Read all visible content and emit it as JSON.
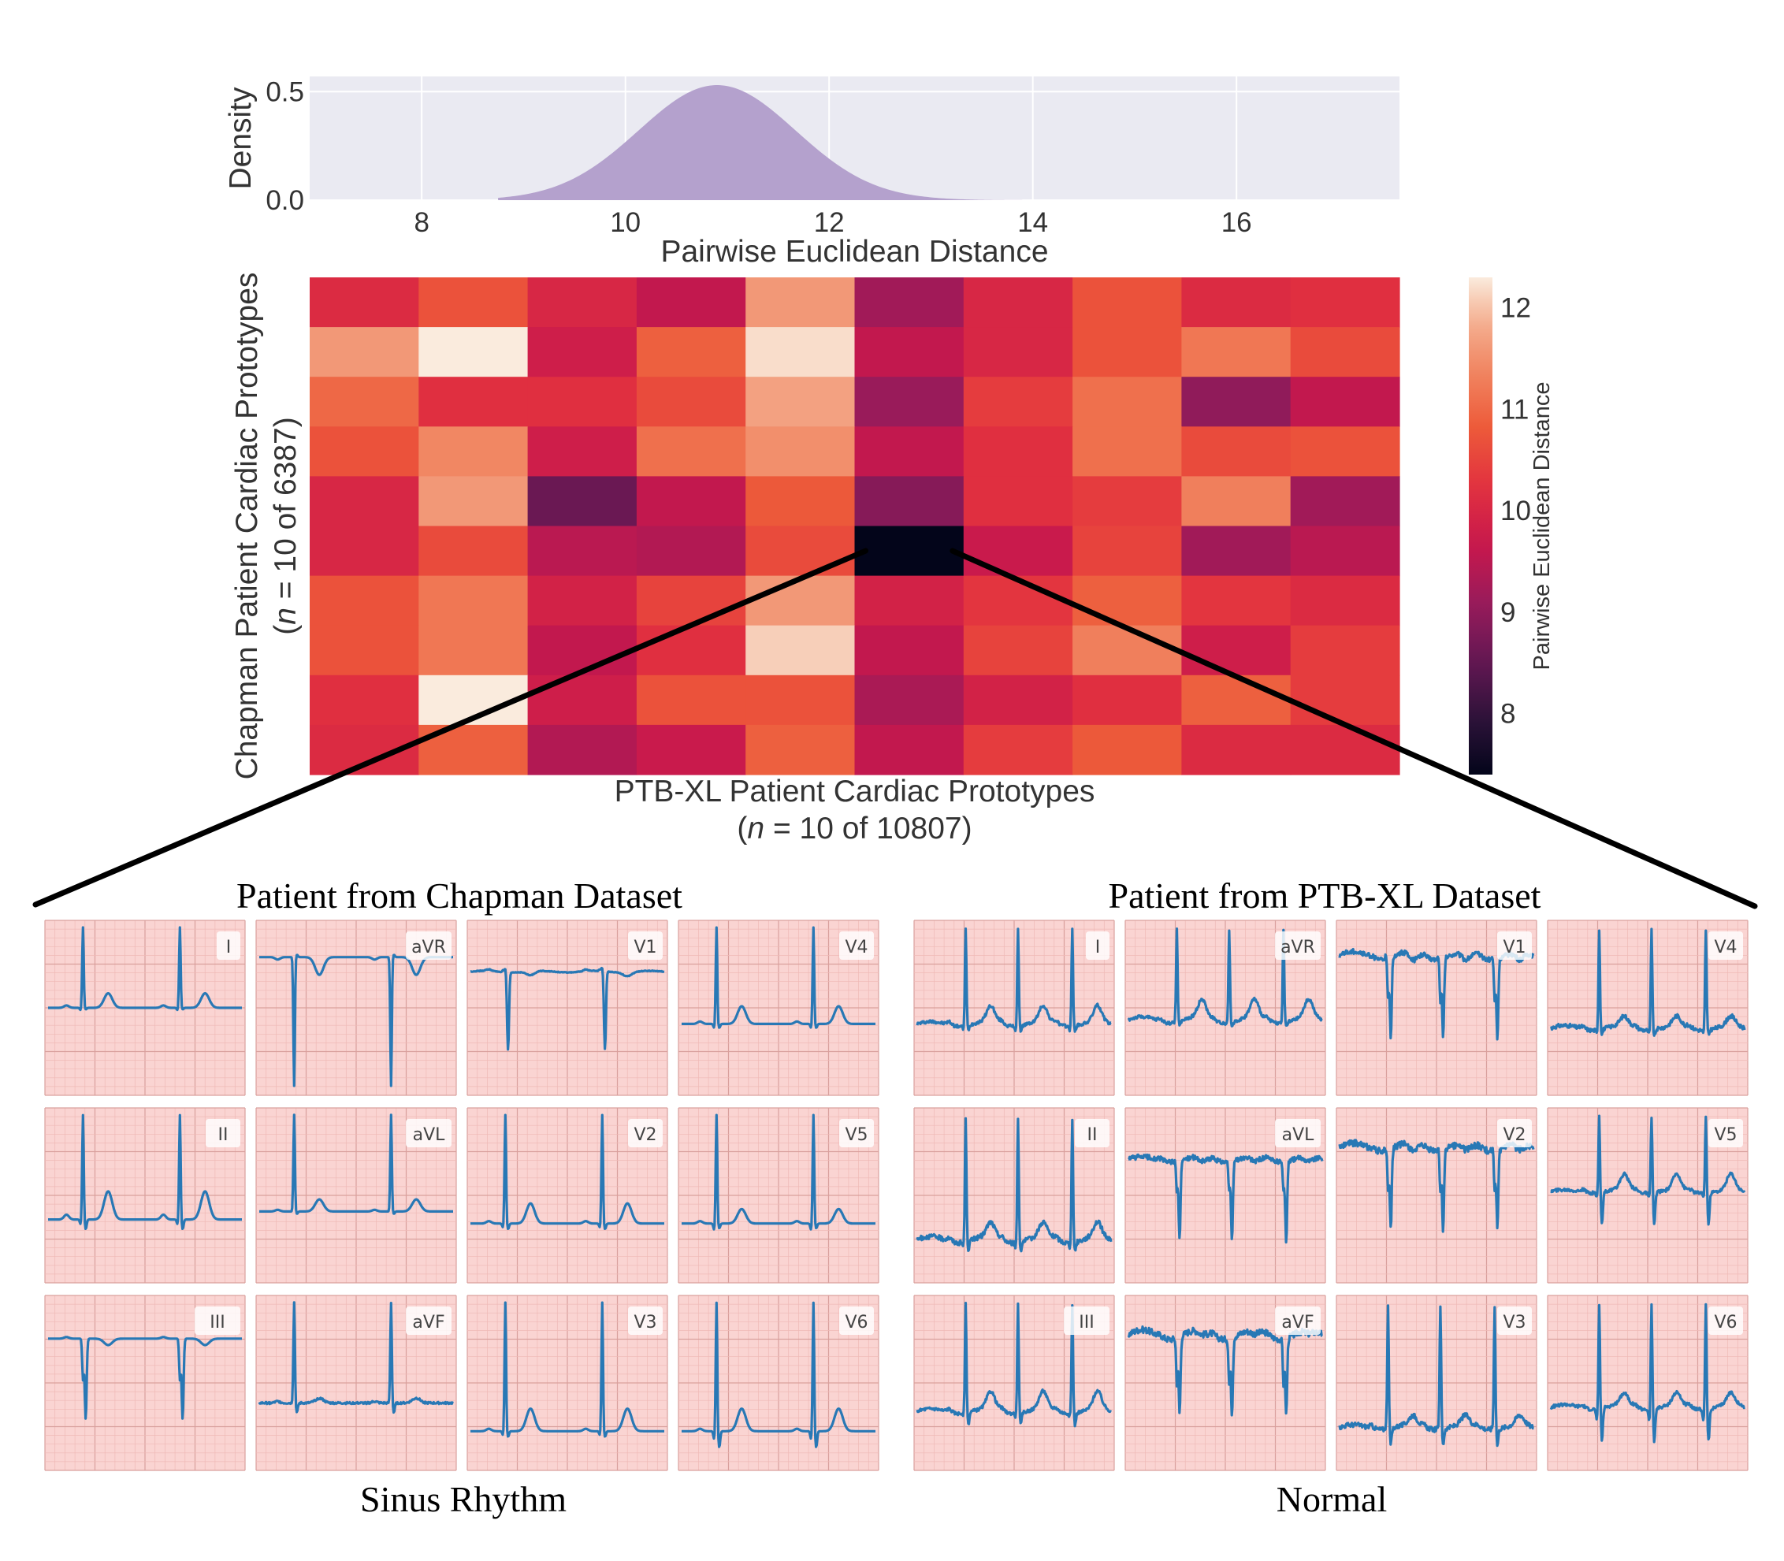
{
  "colors": {
    "density_fill": "#b4a1cd",
    "plot_bg": "#eaeaf2",
    "grid": "#ffffff",
    "ecg_bg": "#fad4d2",
    "ecg_grid_minor": "#efb9b6",
    "ecg_grid_major": "#d9a09d",
    "ecg_trace": "#2878b5",
    "connector": "#000000"
  },
  "chart_data": [
    {
      "type": "area",
      "name": "density",
      "title": "",
      "xlabel": "Pairwise Euclidean Distance",
      "ylabel": "Density",
      "xlim": [
        6.9,
        17.6
      ],
      "ylim": [
        0,
        0.57
      ],
      "xticks": [
        8,
        10,
        12,
        14,
        16
      ],
      "xtick_labels": [
        "8",
        "10",
        "12",
        "14",
        "16"
      ],
      "yticks": [
        0.0,
        0.5
      ],
      "ytick_labels": [
        "0.0",
        "0.5"
      ],
      "grid": true,
      "distribution": {
        "mean": 10.9,
        "std": 0.77,
        "peak": 0.53,
        "support": [
          8.75,
          13.9
        ]
      }
    },
    {
      "type": "heatmap",
      "name": "prototype-distance-heatmap",
      "xlabel_line1": "PTB-XL Patient Cardiac Prototypes",
      "xlabel_line2_var": "n",
      "xlabel_line2_rest": " = 10 of 10807)",
      "ylabel_line1": "Chapman Patient Cardiac Prototypes",
      "ylabel_line2_var": "n",
      "ylabel_line2_rest": " = 10 of 6387)",
      "colorbar_label": "Pairwise Euclidean Distance",
      "colorbar_ticks": [
        8,
        9,
        10,
        11,
        12
      ],
      "colorbar_tick_labels": [
        "8",
        "9",
        "10",
        "11",
        "12"
      ],
      "vmin": 7.4,
      "vmax": 12.3,
      "highlight_cell": {
        "row": 5,
        "col": 5
      },
      "values": [
        [
          10.1,
          10.7,
          10.0,
          9.6,
          11.6,
          9.2,
          10.0,
          10.7,
          10.1,
          10.2
        ],
        [
          11.6,
          12.3,
          9.8,
          10.9,
          12.2,
          9.6,
          10.0,
          10.7,
          11.2,
          10.6
        ],
        [
          11.0,
          10.2,
          10.2,
          10.6,
          11.7,
          9.1,
          10.4,
          11.1,
          9.0,
          9.6
        ],
        [
          10.7,
          11.4,
          9.8,
          11.1,
          11.5,
          9.6,
          10.2,
          11.1,
          10.6,
          10.7
        ],
        [
          10.0,
          11.6,
          8.6,
          9.6,
          10.8,
          8.9,
          10.2,
          10.4,
          11.3,
          9.2
        ],
        [
          10.0,
          10.6,
          9.5,
          9.4,
          10.6,
          7.4,
          9.7,
          10.5,
          9.2,
          9.5
        ],
        [
          10.7,
          11.2,
          9.9,
          10.5,
          11.6,
          9.9,
          10.3,
          10.9,
          10.3,
          10.1
        ],
        [
          10.7,
          11.2,
          9.6,
          10.2,
          12.1,
          9.6,
          10.5,
          11.3,
          9.8,
          10.4
        ],
        [
          10.2,
          12.3,
          9.8,
          10.7,
          10.7,
          9.3,
          9.9,
          10.2,
          10.9,
          10.4
        ],
        [
          10.1,
          10.9,
          9.4,
          9.7,
          10.9,
          9.6,
          10.4,
          10.8,
          10.1,
          10.1
        ]
      ]
    },
    {
      "type": "line",
      "name": "chapman-ecg-leads",
      "title": "Patient from Chapman Dataset",
      "diagnosis": "Sinus Rhythm",
      "leads": [
        "I",
        "aVR",
        "V1",
        "V4",
        "II",
        "aVL",
        "V2",
        "V5",
        "III",
        "aVF",
        "V3",
        "V6"
      ],
      "beat_times": [
        0.18,
        0.68
      ],
      "ylim": [
        -1.0,
        1.0
      ],
      "series": [
        {
          "name": "I",
          "q": -0.03,
          "r": 1.0,
          "s": -0.02,
          "t": 0.18,
          "p": 0.03,
          "noise": 0.0,
          "wander": 0.0,
          "baseline": 0.0
        },
        {
          "name": "aVR",
          "q": 0.0,
          "r": -0.97,
          "s": 0.03,
          "t": -0.22,
          "p": -0.03,
          "noise": 0.0,
          "wander": 0.0,
          "baseline": 0.63
        },
        {
          "name": "V1",
          "q": 0.02,
          "r": 0.5,
          "s": -0.97,
          "t": -0.05,
          "p": 0.02,
          "noise": 0.004,
          "wander": 0.01,
          "baseline": 0.45
        },
        {
          "name": "V4",
          "q": -0.05,
          "r": 1.0,
          "s": -0.05,
          "t": 0.22,
          "p": 0.03,
          "noise": 0.0,
          "wander": 0.0,
          "baseline": -0.2
        },
        {
          "name": "II",
          "q": -0.06,
          "r": 1.0,
          "s": -0.12,
          "t": 0.35,
          "p": 0.06,
          "noise": 0.0,
          "wander": 0.0,
          "baseline": -0.3
        },
        {
          "name": "aVL",
          "q": 0.0,
          "r": 1.0,
          "s": -0.03,
          "t": 0.15,
          "p": 0.02,
          "noise": 0.0,
          "wander": 0.0,
          "baseline": -0.2
        },
        {
          "name": "V2",
          "q": -0.05,
          "r": 1.0,
          "s": -0.07,
          "t": 0.25,
          "p": 0.03,
          "noise": 0.0,
          "wander": 0.0,
          "baseline": -0.35
        },
        {
          "name": "V5",
          "q": -0.08,
          "r": 1.0,
          "s": -0.06,
          "t": 0.18,
          "p": 0.03,
          "noise": 0.0,
          "wander": 0.0,
          "baseline": -0.35
        },
        {
          "name": "III",
          "q": 0.0,
          "r": 0.05,
          "s": -1.0,
          "t": -0.08,
          "p": 0.02,
          "noise": 0.0,
          "wander": 0.0,
          "baseline": 0.55
        },
        {
          "name": "aVF",
          "q": 0.0,
          "r": 1.0,
          "s": -0.12,
          "t": 0.06,
          "p": 0.02,
          "noise": 0.012,
          "wander": 0.0,
          "baseline": -0.25
        },
        {
          "name": "V3",
          "q": -0.05,
          "r": 1.0,
          "s": -0.07,
          "t": 0.28,
          "p": 0.03,
          "noise": 0.0,
          "wander": 0.0,
          "baseline": -0.6
        },
        {
          "name": "V6",
          "q": -0.1,
          "r": 1.0,
          "s": -0.2,
          "t": 0.28,
          "p": 0.03,
          "noise": 0.0,
          "wander": 0.0,
          "baseline": -0.6
        }
      ]
    },
    {
      "type": "line",
      "name": "ptbxl-ecg-leads",
      "title": "Patient from PTB-XL Dataset",
      "diagnosis": "Normal",
      "leads": [
        "I",
        "aVR",
        "V1",
        "V4",
        "II",
        "aVL",
        "V2",
        "V5",
        "III",
        "aVF",
        "V3",
        "V6"
      ],
      "beat_times": [
        0.25,
        0.52,
        0.8
      ],
      "ylim": [
        -1.0,
        1.0
      ],
      "series": [
        {
          "name": "I",
          "q": -0.05,
          "r": 1.0,
          "s": -0.06,
          "t": 0.2,
          "p": 0.04,
          "noise": 0.02,
          "wander": 0.03,
          "baseline": -0.2
        },
        {
          "name": "aVR",
          "q": 0.0,
          "r": 1.0,
          "s": -0.05,
          "t": 0.22,
          "p": 0.03,
          "noise": 0.02,
          "wander": 0.04,
          "baseline": -0.15
        },
        {
          "name": "V1",
          "q": 0.03,
          "r": 0.15,
          "s": -1.0,
          "t": -0.1,
          "p": 0.02,
          "noise": 0.03,
          "wander": 0.05,
          "baseline": 0.65
        },
        {
          "name": "V4",
          "q": -0.05,
          "r": 1.0,
          "s": -0.06,
          "t": 0.12,
          "p": 0.03,
          "noise": 0.025,
          "wander": 0.03,
          "baseline": -0.25
        },
        {
          "name": "II",
          "q": -0.05,
          "r": 1.0,
          "s": -0.1,
          "t": 0.18,
          "p": 0.04,
          "noise": 0.03,
          "wander": 0.04,
          "baseline": -0.55
        },
        {
          "name": "aVL",
          "q": 0.0,
          "r": 0.08,
          "s": -1.0,
          "t": -0.05,
          "p": 0.02,
          "noise": 0.03,
          "wander": 0.03,
          "baseline": 0.45
        },
        {
          "name": "V2",
          "q": 0.03,
          "r": 0.1,
          "s": -1.0,
          "t": -0.08,
          "p": 0.02,
          "noise": 0.04,
          "wander": 0.05,
          "baseline": 0.6
        },
        {
          "name": "V5",
          "q": -0.06,
          "r": 1.0,
          "s": -0.4,
          "t": 0.2,
          "p": 0.03,
          "noise": 0.02,
          "wander": 0.02,
          "baseline": 0.05
        },
        {
          "name": "III",
          "q": -0.04,
          "r": 1.0,
          "s": -0.15,
          "t": 0.22,
          "p": 0.04,
          "noise": 0.02,
          "wander": 0.03,
          "baseline": -0.35
        },
        {
          "name": "aVF",
          "q": 0.0,
          "r": 0.05,
          "s": -0.95,
          "t": -0.05,
          "p": 0.02,
          "noise": 0.04,
          "wander": 0.06,
          "baseline": 0.6
        },
        {
          "name": "V3",
          "q": 0.02,
          "r": 1.0,
          "s": -0.2,
          "t": 0.12,
          "p": 0.03,
          "noise": 0.03,
          "wander": 0.03,
          "baseline": -0.55
        },
        {
          "name": "V6",
          "q": -0.15,
          "r": 1.0,
          "s": -0.4,
          "t": 0.15,
          "p": 0.03,
          "noise": 0.02,
          "wander": 0.03,
          "baseline": -0.3
        }
      ]
    }
  ]
}
